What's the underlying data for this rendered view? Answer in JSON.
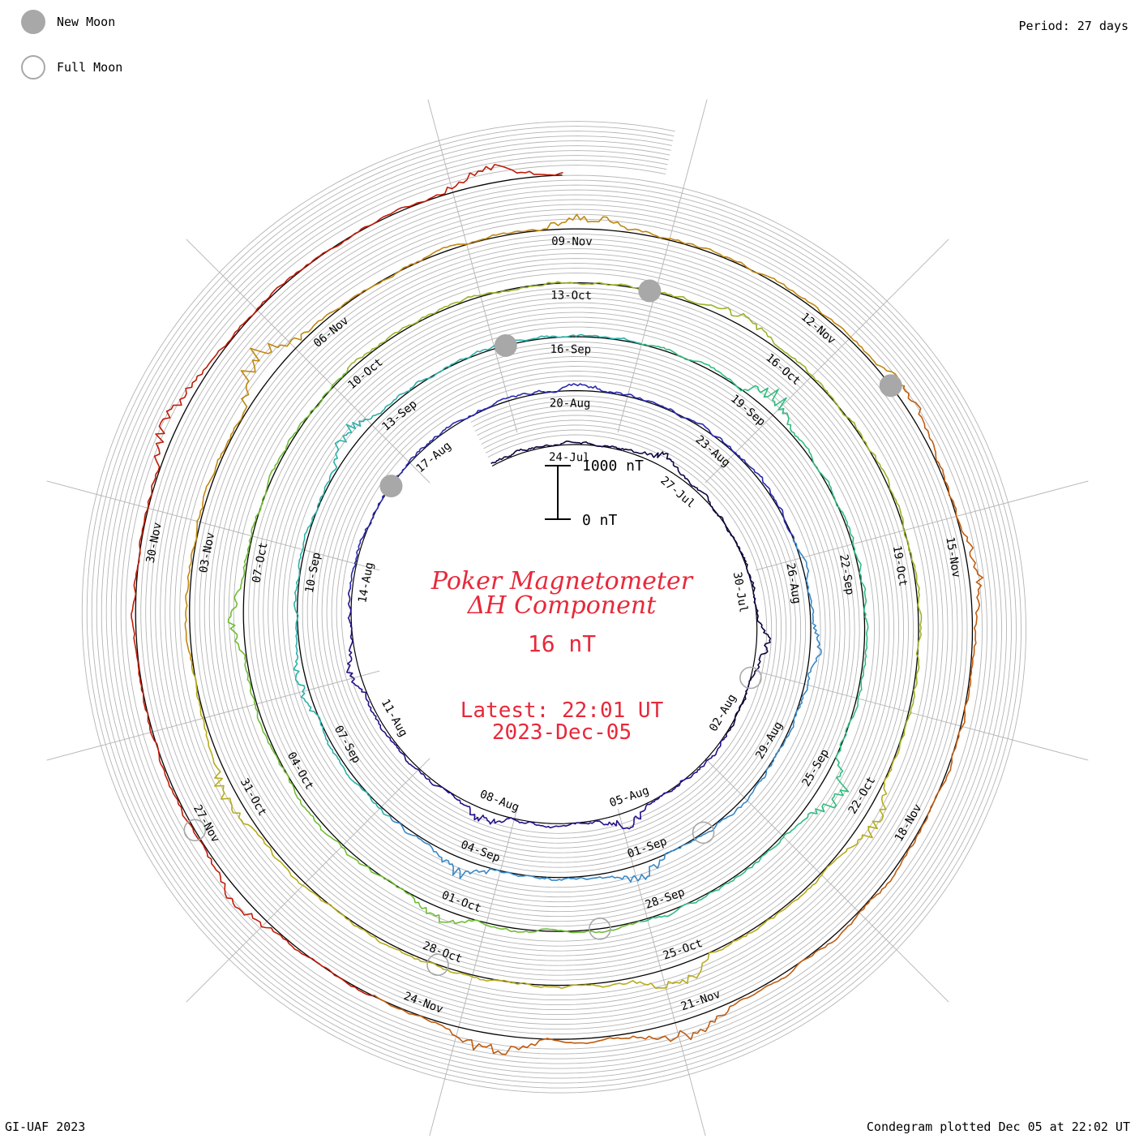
{
  "legend": {
    "new_moon": "New Moon",
    "full_moon": "Full Moon"
  },
  "period_text": "Period: 27 days",
  "footer_left": "GI-UAF 2023",
  "footer_right": "Condegram plotted Dec 05 at 22:02 UT",
  "colors": {
    "title": "#e8283a",
    "grid": "#b4b4b4",
    "baseline": "#000000",
    "moon_fill": "#a8a8a8",
    "full_moon_stroke": "#a8a8a8"
  },
  "chart_data": {
    "type": "line",
    "title_line1": "Poker Magnetometer",
    "title_line2": "ΔH Component",
    "value_text": "16 nT",
    "latest_line1": "Latest: 22:01 UT",
    "latest_line2": "2023-Dec-05",
    "scale_bar": {
      "top_label": "1000 nT",
      "bottom_label": "0 nT",
      "value_nT": 1000
    },
    "period_days": 27,
    "start_date": "2023-07-22",
    "end_date": "2023-12-05",
    "series": [
      {
        "color": "#0c0640"
      },
      {
        "color": "#24128a"
      },
      {
        "color": "#2a2ab0"
      },
      {
        "color": "#3888c8"
      },
      {
        "color": "#2cb0a8"
      },
      {
        "color": "#30bc80"
      },
      {
        "color": "#70bc34"
      },
      {
        "color": "#98b428"
      },
      {
        "color": "#b8ac1c"
      },
      {
        "color": "#c08810"
      },
      {
        "color": "#c05c10"
      },
      {
        "color": "#c01c08"
      }
    ],
    "date_ticks": [
      "24-Jul",
      "27-Jul",
      "30-Jul",
      "02-Aug",
      "05-Aug",
      "08-Aug",
      "11-Aug",
      "14-Aug",
      "17-Aug",
      "20-Aug",
      "23-Aug",
      "26-Aug",
      "29-Aug",
      "01-Sep",
      "04-Sep",
      "07-Sep",
      "10-Sep",
      "13-Sep",
      "16-Sep",
      "19-Sep",
      "22-Sep",
      "25-Sep",
      "28-Sep",
      "01-Oct",
      "04-Oct",
      "07-Oct",
      "10-Oct",
      "13-Oct",
      "16-Oct",
      "19-Oct",
      "22-Oct",
      "25-Oct",
      "28-Oct",
      "31-Oct",
      "03-Nov",
      "06-Nov",
      "09-Nov",
      "12-Nov",
      "15-Nov",
      "18-Nov",
      "21-Nov",
      "24-Nov",
      "27-Nov",
      "30-Nov"
    ],
    "new_moons": [
      "2023-08-16",
      "2023-09-15",
      "2023-10-14",
      "2023-11-13"
    ],
    "full_moons": [
      "2023-08-01",
      "2023-08-31",
      "2023-09-29",
      "2023-10-28",
      "2023-11-27"
    ],
    "disturbances": [
      {
        "date": "2023-07-26",
        "peak_nT": 250
      },
      {
        "date": "2023-07-31",
        "peak_nT": 300
      },
      {
        "date": "2023-08-05",
        "peak_nT": 320
      },
      {
        "date": "2023-08-08",
        "peak_nT": 240
      },
      {
        "date": "2023-08-12",
        "peak_nT": 220
      },
      {
        "date": "2023-08-20",
        "peak_nT": 100
      },
      {
        "date": "2023-08-27",
        "peak_nT": 180
      },
      {
        "date": "2023-09-01",
        "peak_nT": 250
      },
      {
        "date": "2023-09-04",
        "peak_nT": 320
      },
      {
        "date": "2023-09-08",
        "peak_nT": 220
      },
      {
        "date": "2023-09-12",
        "peak_nT": 350
      },
      {
        "date": "2023-09-19",
        "peak_nT": 450
      },
      {
        "date": "2023-09-25",
        "peak_nT": 580
      },
      {
        "date": "2023-10-01",
        "peak_nT": 200
      },
      {
        "date": "2023-10-06",
        "peak_nT": 280
      },
      {
        "date": "2023-10-15",
        "peak_nT": 180
      },
      {
        "date": "2023-10-22",
        "peak_nT": 320
      },
      {
        "date": "2023-10-25",
        "peak_nT": 420
      },
      {
        "date": "2023-10-31",
        "peak_nT": 330
      },
      {
        "date": "2023-11-05",
        "peak_nT": 650
      },
      {
        "date": "2023-11-09",
        "peak_nT": 300
      },
      {
        "date": "2023-11-13",
        "peak_nT": 220
      },
      {
        "date": "2023-11-15",
        "peak_nT": 250
      },
      {
        "date": "2023-11-21",
        "peak_nT": 380
      },
      {
        "date": "2023-11-23",
        "peak_nT": 420
      },
      {
        "date": "2023-11-26",
        "peak_nT": 220
      },
      {
        "date": "2023-12-01",
        "peak_nT": 320
      },
      {
        "date": "2023-12-05",
        "peak_nT": 300
      }
    ]
  }
}
